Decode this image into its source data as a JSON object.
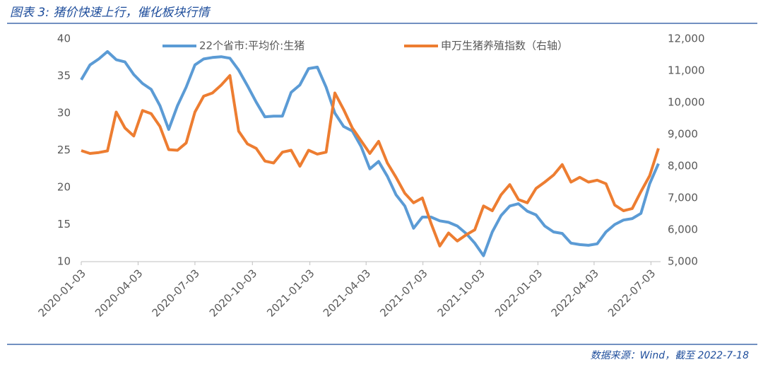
{
  "title": "图表 3: 猪价快速上行，催化板块行情",
  "source": "数据来源：Wind，截至 2022-7-18",
  "chart_data": {
    "type": "line",
    "x": [
      "2020-01-03",
      "2020-01-17",
      "2020-01-31",
      "2020-02-14",
      "2020-02-28",
      "2020-03-13",
      "2020-03-27",
      "2020-04-10",
      "2020-04-24",
      "2020-05-08",
      "2020-05-22",
      "2020-06-05",
      "2020-06-19",
      "2020-07-03",
      "2020-07-17",
      "2020-07-31",
      "2020-08-14",
      "2020-08-28",
      "2020-09-11",
      "2020-09-25",
      "2020-10-09",
      "2020-10-23",
      "2020-11-06",
      "2020-11-20",
      "2020-12-04",
      "2020-12-18",
      "2021-01-01",
      "2021-01-15",
      "2021-01-29",
      "2021-02-12",
      "2021-02-26",
      "2021-03-12",
      "2021-03-26",
      "2021-04-09",
      "2021-04-23",
      "2021-05-07",
      "2021-05-21",
      "2021-06-04",
      "2021-06-18",
      "2021-07-02",
      "2021-07-16",
      "2021-07-30",
      "2021-08-13",
      "2021-08-27",
      "2021-09-10",
      "2021-09-24",
      "2021-10-08",
      "2021-10-22",
      "2021-11-05",
      "2021-11-19",
      "2021-12-03",
      "2021-12-17",
      "2021-12-31",
      "2022-01-14",
      "2022-01-28",
      "2022-02-11",
      "2022-02-25",
      "2022-03-11",
      "2022-03-25",
      "2022-04-08",
      "2022-04-22",
      "2022-05-06",
      "2022-05-20",
      "2022-06-03",
      "2022-06-17",
      "2022-07-01",
      "2022-07-15"
    ],
    "series": [
      {
        "name": "22个省市:平均价:生猪",
        "color": "#5b9bd5",
        "axis": "y",
        "values": [
          34.5,
          36.5,
          37.3,
          38.3,
          37.2,
          36.9,
          35.2,
          34.0,
          33.2,
          31,
          27.8,
          31,
          33.5,
          36.5,
          37.3,
          37.5,
          37.6,
          37.4,
          35.8,
          33.7,
          31.5,
          29.5,
          29.6,
          29.6,
          32.8,
          33.8,
          36,
          36.2,
          33.5,
          30,
          28.2,
          27.6,
          25.5,
          22.5,
          23.5,
          21.5,
          19,
          17.5,
          14.5,
          16,
          16,
          15.5,
          15.3,
          14.8,
          13.8,
          12.5,
          10.8,
          14,
          16.2,
          17.5,
          17.8,
          16.8,
          16.3,
          14.8,
          14,
          13.8,
          12.5,
          12.3,
          12.2,
          12.4,
          14,
          15,
          15.6,
          15.8,
          16.5,
          20.5,
          23.2
        ]
      },
      {
        "name": "申万生猪养殖指数（右轴）",
        "color": "#ed7d31",
        "axis": "y2",
        "values": [
          8490,
          8400,
          8430,
          8480,
          9700,
          9200,
          8950,
          9750,
          9650,
          9250,
          8520,
          8500,
          8730,
          9700,
          10200,
          10300,
          10550,
          10850,
          9100,
          8700,
          8560,
          8160,
          8100,
          8440,
          8500,
          8000,
          8500,
          8380,
          8440,
          10300,
          9780,
          9200,
          8800,
          8400,
          8780,
          8100,
          7650,
          7150,
          6850,
          7000,
          6200,
          5490,
          5900,
          5650,
          5840,
          6000,
          6750,
          6600,
          7100,
          7420,
          6950,
          6850,
          7300,
          7500,
          7720,
          8050,
          7500,
          7650,
          7500,
          7560,
          7450,
          6780,
          6600,
          6670,
          7200,
          7700,
          8560
        ]
      }
    ],
    "xlim": [
      "2020-01-03",
      "2022-07-15"
    ],
    "xticks": [
      "2020-01-03",
      "2020-04-03",
      "2020-07-03",
      "2020-10-03",
      "2021-01-03",
      "2021-04-03",
      "2021-07-03",
      "2021-10-03",
      "2022-01-03",
      "2022-04-03",
      "2022-07-03"
    ],
    "ylim": [
      10,
      40
    ],
    "yticks": [
      10,
      15,
      20,
      25,
      30,
      35,
      40
    ],
    "y2lim": [
      5000,
      12000
    ],
    "y2ticks": [
      {
        "value": 5000,
        "label": "5,000"
      },
      {
        "value": 6000,
        "label": "6,000"
      },
      {
        "value": 7000,
        "label": "7,000"
      },
      {
        "value": 8000,
        "label": "8,000"
      },
      {
        "value": 9000,
        "label": "9,000"
      },
      {
        "value": 10000,
        "label": "10,000"
      },
      {
        "value": 11000,
        "label": "11,000"
      },
      {
        "value": 12000,
        "label": "12,000"
      }
    ],
    "legend": "top"
  }
}
